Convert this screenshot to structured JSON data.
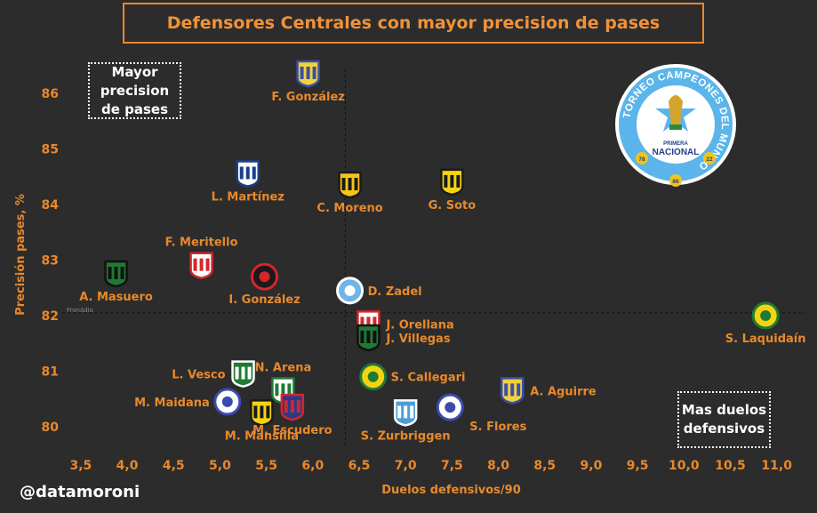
{
  "title": "Defensores Centrales con mayor precision de pases",
  "notes": {
    "top_left": "Mayor\nprecision\nde pases",
    "bottom_right": "Mas duelos\ndefensivos"
  },
  "handle": "@datamoroni",
  "watermark": "Fronádio",
  "logo": {
    "ring_text": "TORNEO CAMPEONES DEL MUNDO",
    "line1": "PRIMERA",
    "line2": "NACIONAL",
    "year_left": "78",
    "year_right": "22",
    "year_bottom": "86"
  },
  "colors": {
    "background": "#2c2c2c",
    "accent": "#f0923a",
    "axis_text": "#e8892b"
  },
  "chart_data": {
    "type": "scatter",
    "title": "Defensores Centrales con mayor precision de pases",
    "xlabel": "Duelos defensivos/90",
    "ylabel": "Precisión pases, %",
    "xlim": [
      3.3,
      11.3
    ],
    "ylim": [
      79.6,
      86.75
    ],
    "xticks": [
      "3,5",
      "4,0",
      "4,5",
      "5,0",
      "5,5",
      "6,0",
      "6,5",
      "7,0",
      "7,5",
      "8,0",
      "8,5",
      "9,0",
      "9,5",
      "10,0",
      "10,5",
      "11,0"
    ],
    "xtick_values": [
      3.5,
      4.0,
      4.5,
      5.0,
      5.5,
      6.0,
      6.5,
      7.0,
      7.5,
      8.0,
      8.5,
      9.0,
      9.5,
      10.0,
      10.5,
      11.0
    ],
    "yticks": [
      "80",
      "81",
      "82",
      "83",
      "84",
      "85",
      "86"
    ],
    "ytick_values": [
      80,
      81,
      82,
      83,
      84,
      85,
      86
    ],
    "reference_lines": {
      "x": 6.35,
      "y": 82.05
    },
    "grid": false,
    "points": [
      {
        "name": "F. González",
        "x": 5.95,
        "y": 86.35,
        "badge": "shield",
        "c1": "#f2d23a",
        "c2": "#3c4fa8",
        "label_pos": "below"
      },
      {
        "name": "L. Martínez",
        "x": 5.3,
        "y": 84.55,
        "badge": "shield",
        "c1": "#ffffff",
        "c2": "#1d3f8a",
        "label_pos": "below"
      },
      {
        "name": "C. Moreno",
        "x": 6.4,
        "y": 84.35,
        "badge": "shield",
        "c1": "#f5c518",
        "c2": "#1a1a1a",
        "label_pos": "below"
      },
      {
        "name": "G. Soto",
        "x": 7.5,
        "y": 84.4,
        "badge": "shield",
        "c1": "#f5d40f",
        "c2": "#1a1a1a",
        "label_pos": "below"
      },
      {
        "name": "F. Meritello",
        "x": 4.8,
        "y": 82.9,
        "badge": "shield",
        "c1": "#ffffff",
        "c2": "#d4262b",
        "label_pos": "above"
      },
      {
        "name": "A. Masuero",
        "x": 3.88,
        "y": 82.75,
        "badge": "shield",
        "c1": "#1e7a34",
        "c2": "#111111",
        "label_pos": "below"
      },
      {
        "name": "I. González",
        "x": 5.48,
        "y": 82.7,
        "badge": "circle",
        "c1": "#1a1a1a",
        "c2": "#d4262b",
        "label_pos": "below"
      },
      {
        "name": "D. Zadel",
        "x": 6.4,
        "y": 82.45,
        "badge": "circle",
        "c1": "#6fb4e6",
        "c2": "#ffffff",
        "label_pos": "right"
      },
      {
        "name": "J. Orellana",
        "x": 6.6,
        "y": 81.85,
        "badge": "shield",
        "c1": "#ffffff",
        "c2": "#d4262b",
        "label_pos": "right"
      },
      {
        "name": "J. Villegas",
        "x": 6.6,
        "y": 81.6,
        "badge": "shield",
        "c1": "#1e7a34",
        "c2": "#111111",
        "label_pos": "right"
      },
      {
        "name": "S. Laquidaín",
        "x": 10.88,
        "y": 82.0,
        "badge": "circle",
        "c1": "#f5d40f",
        "c2": "#1e7a34",
        "label_pos": "below"
      },
      {
        "name": "L. Vesco",
        "x": 5.25,
        "y": 80.95,
        "badge": "shield",
        "c1": "#1e7a34",
        "c2": "#ffffff",
        "label_pos": "left"
      },
      {
        "name": "N. Arena",
        "x": 5.68,
        "y": 80.65,
        "badge": "shield",
        "c1": "#ffffff",
        "c2": "#1e7a34",
        "label_pos": "above"
      },
      {
        "name": "S. Callegari",
        "x": 6.65,
        "y": 80.9,
        "badge": "circle",
        "c1": "#f5d40f",
        "c2": "#1e7a34",
        "label_pos": "right"
      },
      {
        "name": "A. Aguirre",
        "x": 8.15,
        "y": 80.65,
        "badge": "shield",
        "c1": "#f2d23a",
        "c2": "#3c4fa8",
        "label_pos": "right"
      },
      {
        "name": "M. Maidana",
        "x": 5.08,
        "y": 80.45,
        "badge": "circle",
        "c1": "#ffffff",
        "c2": "#3a4bb0",
        "label_pos": "left"
      },
      {
        "name": "M. Mansilla",
        "x": 5.45,
        "y": 80.25,
        "badge": "shield",
        "c1": "#f5d40f",
        "c2": "#1a1a1a",
        "label_pos": "below"
      },
      {
        "name": "M. Escudero",
        "x": 5.78,
        "y": 80.35,
        "badge": "shield",
        "c1": "#2a3a8c",
        "c2": "#d4262b",
        "label_pos": "below"
      },
      {
        "name": "S. Zurbriggen",
        "x": 7.0,
        "y": 80.25,
        "badge": "shield",
        "c1": "#4a9fd8",
        "c2": "#ffffff",
        "label_pos": "below"
      },
      {
        "name": "S. Flores",
        "x": 7.48,
        "y": 80.35,
        "badge": "circle",
        "c1": "#ffffff",
        "c2": "#3a4bb0",
        "label_pos": "below-right"
      }
    ]
  }
}
